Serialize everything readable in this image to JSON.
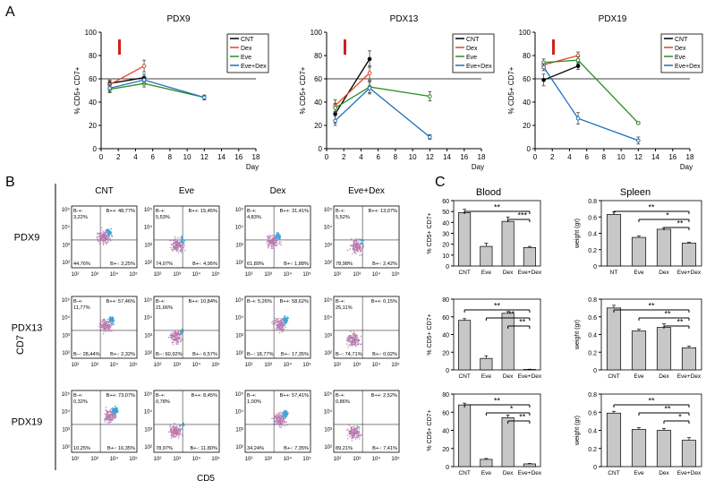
{
  "panel_letters": [
    "A",
    "B",
    "C"
  ],
  "panelA": {
    "x_ticks": [
      "0",
      "2",
      "4",
      "6",
      "8",
      "10",
      "12",
      "14",
      "16",
      "18"
    ],
    "y_ticks": [
      "0",
      "20",
      "40",
      "60",
      "80",
      "100"
    ],
    "xlabel": "Day",
    "ylabel": "% CD5+ CD7+",
    "reference_line_y": 60,
    "legend": [
      "CNT",
      "Dex",
      "Eve",
      "Eve+Dex"
    ]
  },
  "panelB": {
    "col_labels": [
      "CNT",
      "Eve",
      "Dex",
      "Eve+Dex"
    ],
    "row_labels": [
      "PDX9",
      "PDX13",
      "PDX19"
    ],
    "xlabel": "CD5",
    "ylabel": "CD7",
    "x_ticks": [
      "10²",
      "10³",
      "10⁴",
      "10⁵"
    ],
    "y_ticks": [
      "10²",
      "10³",
      "10⁴",
      "10⁵"
    ],
    "quadrants": [
      [
        {
          "tl": "B-+:\n3,22%",
          "tr": "B++: 48,77%",
          "bl": "44,76%",
          "br": "B+-: 3,25%"
        },
        {
          "tl": "B-+:\n5,53%",
          "tr": "B++: 15,45%",
          "bl": "74,07%",
          "br": "B+-: 4,95%"
        },
        {
          "tl": "B-+:\n4,83%",
          "tr": "B++: 31,41%",
          "bl": "61,89%",
          "br": "B+-: 1,88%"
        },
        {
          "tl": "B-+:\n5,52%",
          "tr": "B++: 13,07%",
          "bl": "78,98%",
          "br": "B+-: 2,42%"
        }
      ],
      [
        {
          "tl": "B-+:\n11,77%",
          "tr": "B++: 57,46%",
          "bl": "B--: 28,44%",
          "br": "B+-: 2,32%"
        },
        {
          "tl": "B-+:\n21,66%",
          "tr": "B++: 10,84%",
          "bl": "B--: 60,92%",
          "br": "B+-: 6,57%"
        },
        {
          "tl": "B-+: 5,26%",
          "tr": "B++: 58,62%",
          "bl": "B--: 18,77%",
          "br": "B+-: 17,35%"
        },
        {
          "tl": "B-+:\n25,11%",
          "tr": "B++: 0,15%",
          "bl": "B--: 74,71%",
          "br": "B+-: 0,02%"
        }
      ],
      [
        {
          "tl": "B-+:\n0,32%",
          "tr": "B++: 73,07%",
          "bl": "10,25%",
          "br": "B+-: 16,35%"
        },
        {
          "tl": "B-+:\n0,78%",
          "tr": "B++: 8,45%",
          "bl": "78,97%",
          "br": "B+-: 11,80%"
        },
        {
          "tl": "B-+:\n1,00%",
          "tr": "B++: 57,41%",
          "bl": "34,24%",
          "br": "B+-: 7,35%"
        },
        {
          "tl": "B-+:\n0,86%",
          "tr": "B++: 2,52%",
          "bl": "89,21%",
          "br": "B+-: 7,41%"
        }
      ]
    ]
  },
  "panelC": {
    "blood_title": "Blood",
    "spleen_title": "Spleen",
    "blood_ylabel": "% CD5+ CD7+",
    "spleen_ylabel": "weight (gr)"
  },
  "chart_data": [
    {
      "type": "line",
      "title": "PDX9",
      "xlabel": "Day",
      "ylabel": "% CD5+ CD7+",
      "xlim": [
        0,
        18
      ],
      "ylim": [
        0,
        100
      ],
      "series": [
        {
          "name": "CNT",
          "color": "#000000",
          "x": [
            1,
            5
          ],
          "y": [
            56,
            61
          ],
          "err": [
            3,
            3
          ]
        },
        {
          "name": "Dex",
          "color": "#e8431f",
          "x": [
            1,
            5
          ],
          "y": [
            55,
            71
          ],
          "err": [
            3,
            5
          ]
        },
        {
          "name": "Eve",
          "color": "#2a8c2a",
          "x": [
            1,
            5,
            12
          ],
          "y": [
            51,
            56,
            44
          ],
          "err": [
            3,
            3,
            2
          ]
        },
        {
          "name": "Eve+Dex",
          "color": "#1f6fb8",
          "x": [
            1,
            5,
            12
          ],
          "y": [
            52,
            59,
            44
          ],
          "err": [
            3,
            3,
            2
          ]
        }
      ]
    },
    {
      "type": "line",
      "title": "PDX13",
      "xlabel": "Day",
      "ylabel": "% CD5+ CD7+",
      "xlim": [
        0,
        18
      ],
      "ylim": [
        0,
        100
      ],
      "series": [
        {
          "name": "CNT",
          "color": "#000000",
          "x": [
            1,
            5
          ],
          "y": [
            30,
            77
          ],
          "err": [
            8,
            7
          ]
        },
        {
          "name": "Dex",
          "color": "#e8431f",
          "x": [
            1,
            5
          ],
          "y": [
            37,
            65
          ],
          "err": [
            5,
            6
          ]
        },
        {
          "name": "Eve",
          "color": "#2a8c2a",
          "x": [
            1,
            5,
            12
          ],
          "y": [
            35,
            53,
            45
          ],
          "err": [
            4,
            5,
            4
          ]
        },
        {
          "name": "Eve+Dex",
          "color": "#1f6fb8",
          "x": [
            1,
            5,
            12
          ],
          "y": [
            24,
            52,
            10
          ],
          "err": [
            4,
            5,
            2
          ]
        }
      ]
    },
    {
      "type": "line",
      "title": "PDX19",
      "xlabel": "Day",
      "ylabel": "% CD5+ CD7+",
      "xlim": [
        0,
        18
      ],
      "ylim": [
        0,
        100
      ],
      "series": [
        {
          "name": "CNT",
          "color": "#000000",
          "x": [
            1,
            5
          ],
          "y": [
            59,
            71
          ],
          "err": [
            5,
            3
          ]
        },
        {
          "name": "Dex",
          "color": "#e8431f",
          "x": [
            1,
            5
          ],
          "y": [
            72,
            80
          ],
          "err": [
            3,
            3
          ]
        },
        {
          "name": "Eve",
          "color": "#2a8c2a",
          "x": [
            1,
            5,
            12
          ],
          "y": [
            74,
            76,
            22
          ],
          "err": [
            3,
            3,
            1
          ]
        },
        {
          "name": "Eve+Dex",
          "color": "#1f6fb8",
          "x": [
            1,
            5,
            12
          ],
          "y": [
            70,
            26,
            7
          ],
          "err": [
            3,
            5,
            3
          ]
        }
      ]
    },
    {
      "type": "bar",
      "title": "Blood",
      "row": "PDX9",
      "categories": [
        "CNT",
        "Eve",
        "Dex",
        "Eve+Dex"
      ],
      "values": [
        49,
        18,
        41,
        17
      ],
      "err": [
        3,
        3,
        4,
        1
      ],
      "ylim": [
        0,
        60
      ],
      "yticks": [
        0,
        10,
        20,
        30,
        40,
        50,
        60
      ],
      "ylabel": "% CD5+ CD7+",
      "sig": [
        {
          "from": 0,
          "to": 3,
          "label": "**"
        },
        {
          "from": 2,
          "to": 3,
          "label": "***"
        }
      ]
    },
    {
      "type": "bar",
      "title": "Blood",
      "row": "PDX13",
      "categories": [
        "CNT",
        "Eve",
        "Dex",
        "Eve+Dex"
      ],
      "values": [
        56,
        13,
        64,
        0.5
      ],
      "err": [
        2,
        3,
        2,
        0.3
      ],
      "ylim": [
        0,
        80
      ],
      "yticks": [
        0,
        20,
        40,
        60,
        80
      ],
      "ylabel": "% CD5+ CD7+",
      "sig": [
        {
          "from": 0,
          "to": 3,
          "label": "**"
        },
        {
          "from": 1,
          "to": 3,
          "label": "**"
        },
        {
          "from": 2,
          "to": 3,
          "label": "**"
        }
      ]
    },
    {
      "type": "bar",
      "title": "Blood",
      "row": "PDX19",
      "categories": [
        "CNT",
        "Eve",
        "Dex",
        "Eve+Dex"
      ],
      "values": [
        68,
        8,
        54,
        3
      ],
      "err": [
        2,
        1,
        3,
        0.5
      ],
      "ylim": [
        0,
        80
      ],
      "yticks": [
        0,
        20,
        40,
        60,
        80
      ],
      "ylabel": "% CD5+ CD7+",
      "sig": [
        {
          "from": 0,
          "to": 3,
          "label": "**"
        },
        {
          "from": 1,
          "to": 3,
          "label": "*"
        },
        {
          "from": 2,
          "to": 3,
          "label": "**"
        }
      ]
    },
    {
      "type": "bar",
      "title": "Spleen",
      "row": "PDX9",
      "categories": [
        "NT",
        "Eve",
        "Dex",
        "Eve+Dex"
      ],
      "values": [
        0.63,
        0.35,
        0.45,
        0.28
      ],
      "err": [
        0.03,
        0.02,
        0.02,
        0.01
      ],
      "ylim": [
        0,
        0.8
      ],
      "yticks": [
        0,
        0.2,
        0.4,
        0.6,
        0.8
      ],
      "ylabel": "weight (gr)",
      "sig": [
        {
          "from": 0,
          "to": 3,
          "label": "**"
        },
        {
          "from": 1,
          "to": 3,
          "label": "*"
        },
        {
          "from": 2,
          "to": 3,
          "label": "**"
        }
      ]
    },
    {
      "type": "bar",
      "title": "Spleen",
      "row": "PDX13",
      "categories": [
        "CNT",
        "Eve",
        "Dex",
        "Eve+Dex"
      ],
      "values": [
        0.7,
        0.44,
        0.48,
        0.25
      ],
      "err": [
        0.03,
        0.02,
        0.04,
        0.02
      ],
      "ylim": [
        0,
        0.8
      ],
      "yticks": [
        0,
        0.2,
        0.4,
        0.6,
        0.8
      ],
      "ylabel": "weight (gr)",
      "sig": [
        {
          "from": 0,
          "to": 3,
          "label": "**"
        },
        {
          "from": 1,
          "to": 3,
          "label": "**"
        },
        {
          "from": 2,
          "to": 3,
          "label": "**"
        }
      ]
    },
    {
      "type": "bar",
      "title": "Spleen",
      "row": "PDX19",
      "categories": [
        "CNT",
        "Eve",
        "Dex",
        "Eve+Dex"
      ],
      "values": [
        0.59,
        0.41,
        0.4,
        0.29
      ],
      "err": [
        0.02,
        0.02,
        0.02,
        0.03
      ],
      "ylim": [
        0,
        0.8
      ],
      "yticks": [
        0,
        0.2,
        0.4,
        0.6,
        0.8
      ],
      "ylabel": "weight (gr)",
      "sig": [
        {
          "from": 0,
          "to": 3,
          "label": "**"
        },
        {
          "from": 1,
          "to": 3,
          "label": "**"
        },
        {
          "from": 2,
          "to": 3,
          "label": "*"
        }
      ]
    }
  ]
}
